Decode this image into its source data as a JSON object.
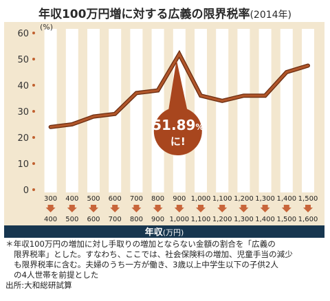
{
  "title": {
    "main": "年収100万円増に対する広義の限界税率",
    "sub": "(2014年)"
  },
  "colors": {
    "line": "#b1562a",
    "line_outline": "#6a2c10",
    "callout": "#a8461e",
    "axis_bar": "#17364f",
    "panel": "#f3e7cf",
    "stripe": "#ffffff",
    "arrow": "#c8653a",
    "point": "#c1602f"
  },
  "callout": {
    "value": "51.89",
    "unit": "%",
    "suffix": "に!"
  },
  "chart_data": {
    "type": "line",
    "title": "年収100万円増に対する広義の限界税率",
    "subtitle": "(2014年)",
    "ylabel": "(%)",
    "xlabel": "年収",
    "xlabel_unit": "(万円)",
    "ylim": [
      0,
      60
    ],
    "yticks": [
      0,
      10,
      20,
      30,
      40,
      50,
      60
    ],
    "grid": false,
    "categories_from": [
      "300",
      "400",
      "500",
      "600",
      "700",
      "800",
      "900",
      "1,000",
      "1,100",
      "1,200",
      "1,300",
      "1,400",
      "1,500"
    ],
    "categories_to": [
      "400",
      "500",
      "600",
      "700",
      "800",
      "900",
      "1,000",
      "1,100",
      "1,200",
      "1,300",
      "1,400",
      "1,500",
      "1,600"
    ],
    "series": [
      {
        "values": [
          24,
          25,
          28,
          29,
          37,
          38,
          51.89,
          36,
          34,
          36,
          36,
          45,
          47.5
        ]
      }
    ],
    "annotation": "51.89%に!"
  },
  "notes": {
    "line1": "＊年収100万円の増加に対し手取りの増加とならない金額の割合を「広義の",
    "line2": "限界税率」とした。すなわち、ここでは、社会保険料の増加、児童手当の減少",
    "line3": "も限界税率に含む。夫婦のうち一方が働き、3歳以上中学生以下の子供2人",
    "line4": "の4人世帯を前提とした",
    "source": "出所:大和総研試算"
  }
}
